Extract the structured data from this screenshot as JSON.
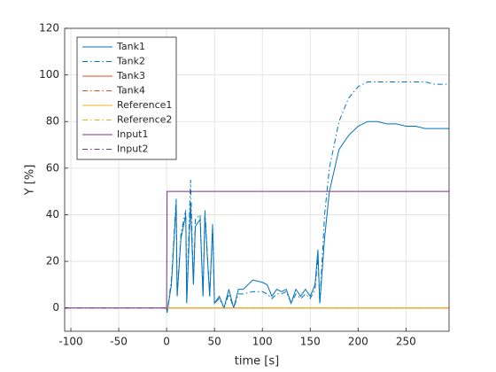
{
  "chart_data": {
    "type": "line",
    "xlabel": "time [s]",
    "ylabel": "Y [%]",
    "x": [
      -106,
      0,
      0.5,
      5,
      10,
      11,
      15,
      20,
      21,
      25,
      28,
      30,
      35,
      38,
      40,
      45,
      48,
      50,
      55,
      60,
      65,
      70,
      75,
      80,
      90,
      100,
      105,
      110,
      115,
      120,
      125,
      130,
      135,
      140,
      145,
      150,
      155,
      158,
      160,
      165,
      170,
      180,
      190,
      200,
      210,
      220,
      230,
      240,
      250,
      260,
      270,
      280,
      295
    ],
    "series": [
      {
        "name": "Tank1",
        "color": "#0072bd",
        "style": "solid",
        "values": [
          null,
          0,
          -2,
          10,
          45,
          5,
          30,
          40,
          2,
          45,
          10,
          35,
          38,
          5,
          40,
          5,
          35,
          2,
          5,
          0,
          8,
          0,
          8,
          8,
          12,
          11,
          10,
          5,
          8,
          7,
          8,
          2,
          8,
          5,
          8,
          5,
          10,
          25,
          2,
          30,
          50,
          68,
          74,
          78,
          80,
          80,
          79,
          79,
          78,
          78,
          77,
          77,
          77
        ]
      },
      {
        "name": "Tank2",
        "color": "#0072bd",
        "style": "dashdot",
        "values": [
          null,
          0,
          -2,
          12,
          47,
          5,
          32,
          42,
          3,
          55,
          10,
          38,
          40,
          5,
          42,
          5,
          36,
          2,
          4,
          0,
          6,
          0,
          6,
          6,
          7,
          7,
          6,
          4,
          6,
          6,
          7,
          2,
          6,
          4,
          6,
          4,
          8,
          22,
          2,
          40,
          60,
          80,
          90,
          95,
          97,
          97,
          97,
          97,
          97,
          97,
          97,
          96,
          96
        ]
      },
      {
        "name": "Tank3",
        "color": "#d95319",
        "style": "solid",
        "values": [
          null,
          0,
          0,
          0,
          0,
          0,
          0,
          0,
          0,
          0,
          0,
          0,
          0,
          0,
          0,
          0,
          0,
          0,
          0,
          0,
          0,
          0,
          0,
          0,
          0,
          0,
          0,
          0,
          0,
          0,
          0,
          0,
          0,
          0,
          0,
          0,
          0,
          0,
          0,
          0,
          0,
          0,
          0,
          0,
          0,
          0,
          0,
          0,
          0,
          0,
          0,
          0,
          0
        ]
      },
      {
        "name": "Tank4",
        "color": "#d95319",
        "style": "dashdot",
        "values": [
          null,
          0,
          0,
          0,
          0,
          0,
          0,
          0,
          0,
          0,
          0,
          0,
          0,
          0,
          0,
          0,
          0,
          0,
          0,
          0,
          0,
          0,
          0,
          0,
          0,
          0,
          0,
          0,
          0,
          0,
          0,
          0,
          0,
          0,
          0,
          0,
          0,
          0,
          0,
          0,
          0,
          0,
          0,
          0,
          0,
          0,
          0,
          0,
          0,
          0,
          0,
          0,
          0
        ]
      },
      {
        "name": "Input2",
        "color": "#7e2f8e",
        "style": "dashdot",
        "values": [
          0,
          0,
          null,
          null,
          null,
          null,
          null,
          null,
          null,
          null,
          null,
          null,
          null,
          null,
          null,
          null,
          null,
          null,
          null,
          null,
          null,
          null,
          null,
          null,
          null,
          null,
          null,
          null,
          null,
          null,
          null,
          null,
          null,
          null,
          null,
          null,
          null,
          null,
          null,
          null,
          null,
          null,
          null,
          null,
          null,
          null,
          null,
          null,
          null,
          null,
          null,
          null,
          null
        ]
      },
      {
        "name": "Reference1",
        "color": "#edb120",
        "style": "solid",
        "values": [
          null,
          0,
          0,
          0,
          0,
          0,
          0,
          0,
          0,
          0,
          0,
          0,
          0,
          0,
          0,
          0,
          0,
          0,
          0,
          0,
          0,
          0,
          0,
          0,
          0,
          0,
          0,
          0,
          0,
          0,
          0,
          0,
          0,
          0,
          0,
          0,
          0,
          0,
          0,
          0,
          0,
          0,
          0,
          0,
          0,
          0,
          0,
          0,
          0,
          0,
          0,
          0,
          0
        ]
      },
      {
        "name": "Reference2",
        "color": "#edb120",
        "style": "dashdot",
        "values": [
          null,
          0,
          0,
          0,
          0,
          0,
          0,
          0,
          0,
          0,
          0,
          0,
          0,
          0,
          0,
          0,
          0,
          0,
          0,
          0,
          0,
          0,
          0,
          0,
          0,
          0,
          0,
          0,
          0,
          0,
          0,
          0,
          0,
          0,
          0,
          0,
          0,
          0,
          0,
          0,
          0,
          0,
          0,
          0,
          0,
          0,
          0,
          0,
          0,
          0,
          0,
          0,
          0
        ]
      },
      {
        "name": "Input1",
        "color": "#7e2f8e",
        "style": "solid",
        "values": [
          0,
          0,
          50,
          50,
          50,
          50,
          50,
          50,
          50,
          50,
          50,
          50,
          50,
          50,
          50,
          50,
          50,
          50,
          50,
          50,
          50,
          50,
          50,
          50,
          50,
          50,
          50,
          50,
          50,
          50,
          50,
          50,
          50,
          50,
          50,
          50,
          50,
          50,
          50,
          50,
          50,
          50,
          50,
          50,
          50,
          50,
          50,
          50,
          50,
          50,
          50,
          50,
          50
        ]
      }
    ],
    "legend_order": [
      0,
      1,
      2,
      3,
      5,
      6,
      7,
      4
    ],
    "legend": "upper left",
    "xlim": [
      -106.5,
      295
    ],
    "xticks": [
      -100,
      -50,
      0,
      50,
      100,
      150,
      200,
      250
    ],
    "ylim": [
      -10,
      120
    ],
    "yticks": [
      0,
      20,
      40,
      60,
      80,
      100,
      120
    ],
    "grid": true
  }
}
